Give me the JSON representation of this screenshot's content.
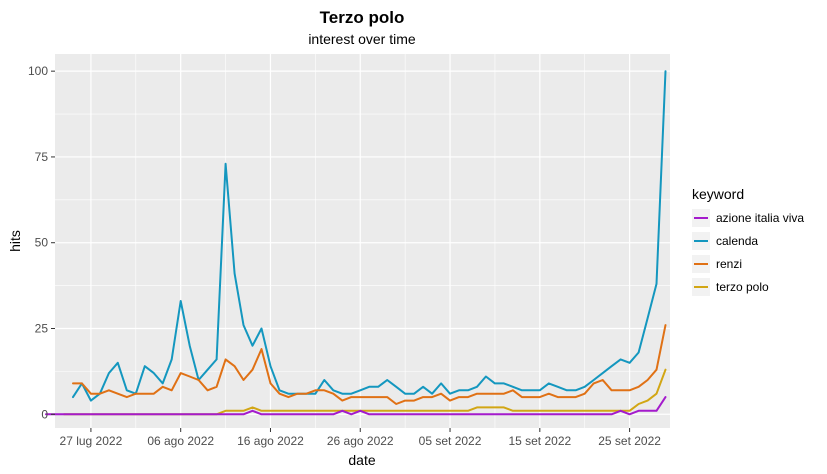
{
  "chart_data": {
    "type": "line",
    "title": "Terzo polo",
    "subtitle": "interest over time",
    "xlabel": "date",
    "ylabel": "hits",
    "legend_title": "keyword",
    "legend_position": "right",
    "grid": true,
    "x_start_date": "2022-07-23",
    "x_ticks": [
      "27 lug 2022",
      "06 ago 2022",
      "16 ago 2022",
      "26 ago 2022",
      "05 set 2022",
      "15 set 2022",
      "25 set 2022"
    ],
    "y_ticks": [
      "0",
      "25",
      "50",
      "75",
      "100"
    ],
    "ylim": [
      -4,
      105
    ],
    "colors": {
      "azione italia viva": "#a41bcc",
      "calenda": "#1497bf",
      "renzi": "#e07115",
      "terzo polo": "#d2a614"
    },
    "series": [
      {
        "name": "azione italia viva",
        "values": [
          0,
          0,
          0,
          0,
          0,
          0,
          0,
          0,
          0,
          0,
          0,
          0,
          0,
          0,
          0,
          0,
          0,
          0,
          0,
          0,
          0,
          0,
          0,
          1,
          0,
          0,
          0,
          0,
          0,
          0,
          0,
          0,
          0,
          1,
          0,
          1,
          0,
          0,
          0,
          0,
          0,
          0,
          0,
          0,
          0,
          0,
          0,
          0,
          0,
          0,
          0,
          0,
          0,
          0,
          0,
          0,
          0,
          0,
          0,
          0,
          0,
          0,
          0,
          0,
          1,
          0,
          1,
          1,
          1,
          5
        ]
      },
      {
        "name": "calenda",
        "values": [
          5,
          9,
          4,
          6,
          12,
          15,
          7,
          6,
          14,
          12,
          9,
          16,
          33,
          20,
          10,
          13,
          16,
          73,
          41,
          26,
          20,
          25,
          14,
          7,
          6,
          6,
          6,
          6,
          10,
          7,
          6,
          6,
          7,
          8,
          8,
          10,
          8,
          6,
          6,
          8,
          6,
          9,
          6,
          7,
          7,
          8,
          11,
          9,
          9,
          8,
          7,
          7,
          7,
          9,
          8,
          7,
          7,
          8,
          10,
          12,
          14,
          16,
          15,
          18,
          28,
          38,
          100
        ]
      },
      {
        "name": "renzi",
        "values": [
          9,
          9,
          6,
          6,
          7,
          6,
          5,
          6,
          6,
          6,
          8,
          7,
          12,
          11,
          10,
          7,
          8,
          16,
          14,
          10,
          13,
          19,
          9,
          6,
          5,
          6,
          6,
          7,
          7,
          6,
          4,
          5,
          5,
          5,
          5,
          5,
          3,
          4,
          4,
          5,
          5,
          6,
          4,
          5,
          5,
          6,
          6,
          6,
          6,
          7,
          5,
          5,
          5,
          6,
          5,
          5,
          5,
          6,
          9,
          10,
          7,
          7,
          7,
          8,
          10,
          13,
          26
        ]
      },
      {
        "name": "terzo polo",
        "values": [
          0,
          0,
          0,
          0,
          0,
          0,
          0,
          0,
          0,
          0,
          0,
          0,
          0,
          0,
          0,
          0,
          0,
          0,
          1,
          1,
          1,
          2,
          1,
          1,
          1,
          1,
          1,
          1,
          1,
          1,
          1,
          1,
          1,
          1,
          1,
          1,
          1,
          1,
          1,
          1,
          1,
          1,
          1,
          1,
          1,
          1,
          2,
          2,
          2,
          2,
          1,
          1,
          1,
          1,
          1,
          1,
          1,
          1,
          1,
          1,
          1,
          1,
          1,
          1,
          3,
          4,
          6,
          13
        ]
      }
    ]
  }
}
